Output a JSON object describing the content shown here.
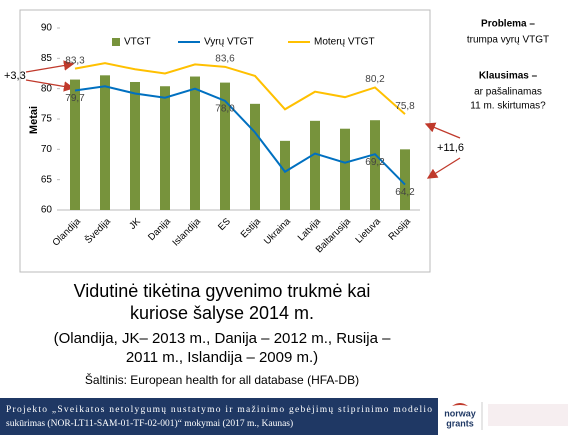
{
  "chart_data": {
    "type": "bar",
    "ylabel": "Metai",
    "categories": [
      "Olandija",
      "Švedija",
      "JK",
      "Danija",
      "Islandija",
      "ES",
      "Estija",
      "Ukraina",
      "Latvija",
      "Baltarusija",
      "Lietuva",
      "Rusija"
    ],
    "series": [
      {
        "name": "VTGT",
        "type": "bar",
        "color": "#77933c",
        "values": [
          81.5,
          82.2,
          81.1,
          80.4,
          82.0,
          81.0,
          77.5,
          71.4,
          74.7,
          73.4,
          74.8,
          70.0
        ]
      },
      {
        "name": "Vyrų VTGT",
        "type": "line",
        "color": "#0070c0",
        "values": [
          79.7,
          80.4,
          79.2,
          78.5,
          80.0,
          78.0,
          72.8,
          66.3,
          69.3,
          67.8,
          69.2,
          64.2
        ],
        "value_labels": [
          "79,7",
          null,
          null,
          null,
          null,
          "78,0",
          null,
          null,
          null,
          null,
          "69,2",
          "64,2"
        ]
      },
      {
        "name": "Moterų VTGT",
        "type": "line",
        "color": "#ffc000",
        "values": [
          83.3,
          84.2,
          83.2,
          82.5,
          84.0,
          83.6,
          82.1,
          76.6,
          79.5,
          78.6,
          80.2,
          75.8
        ],
        "value_labels": [
          "83,3",
          null,
          null,
          null,
          null,
          "83,6",
          null,
          null,
          null,
          null,
          "80,2",
          "75,8"
        ]
      }
    ],
    "ylim": [
      60,
      90
    ],
    "yticks": [
      60,
      65,
      70,
      75,
      80,
      85,
      90
    ],
    "grid": false,
    "annotations": [
      "+3,3",
      "+11,6"
    ]
  },
  "side_notes": {
    "problem_title": "Problema –",
    "problem_text": "trumpa vyrų VTGT",
    "question_title": "Klausimas –",
    "question_lines": [
      "ar pašalinamas",
      "11 m. skirtumas?"
    ]
  },
  "caption": {
    "title_lines": [
      "Vidutinė tikėtina gyvenimo trukmė kai",
      "kuriose šalyse 2014 m."
    ],
    "subtitle_lines": [
      "(Olandija, JK– 2013 m., Danija – 2012 m., Rusija –",
      "2011 m., Islandija – 2009 m.)"
    ],
    "source": "Šaltinis: European health for all database (HFA-DB)"
  },
  "footer": {
    "lines": [
      "Projekto „Sveikatos netolygumų nustatymo ir mažinimo gebėjimų stiprinimo modelio",
      "sukūrimas (NOR-LT11-SAM-01-TF-02-001)“ mokymai (2017 m., Kaunas)"
    ]
  },
  "logo": {
    "line1": "norway",
    "line2": "grants"
  }
}
